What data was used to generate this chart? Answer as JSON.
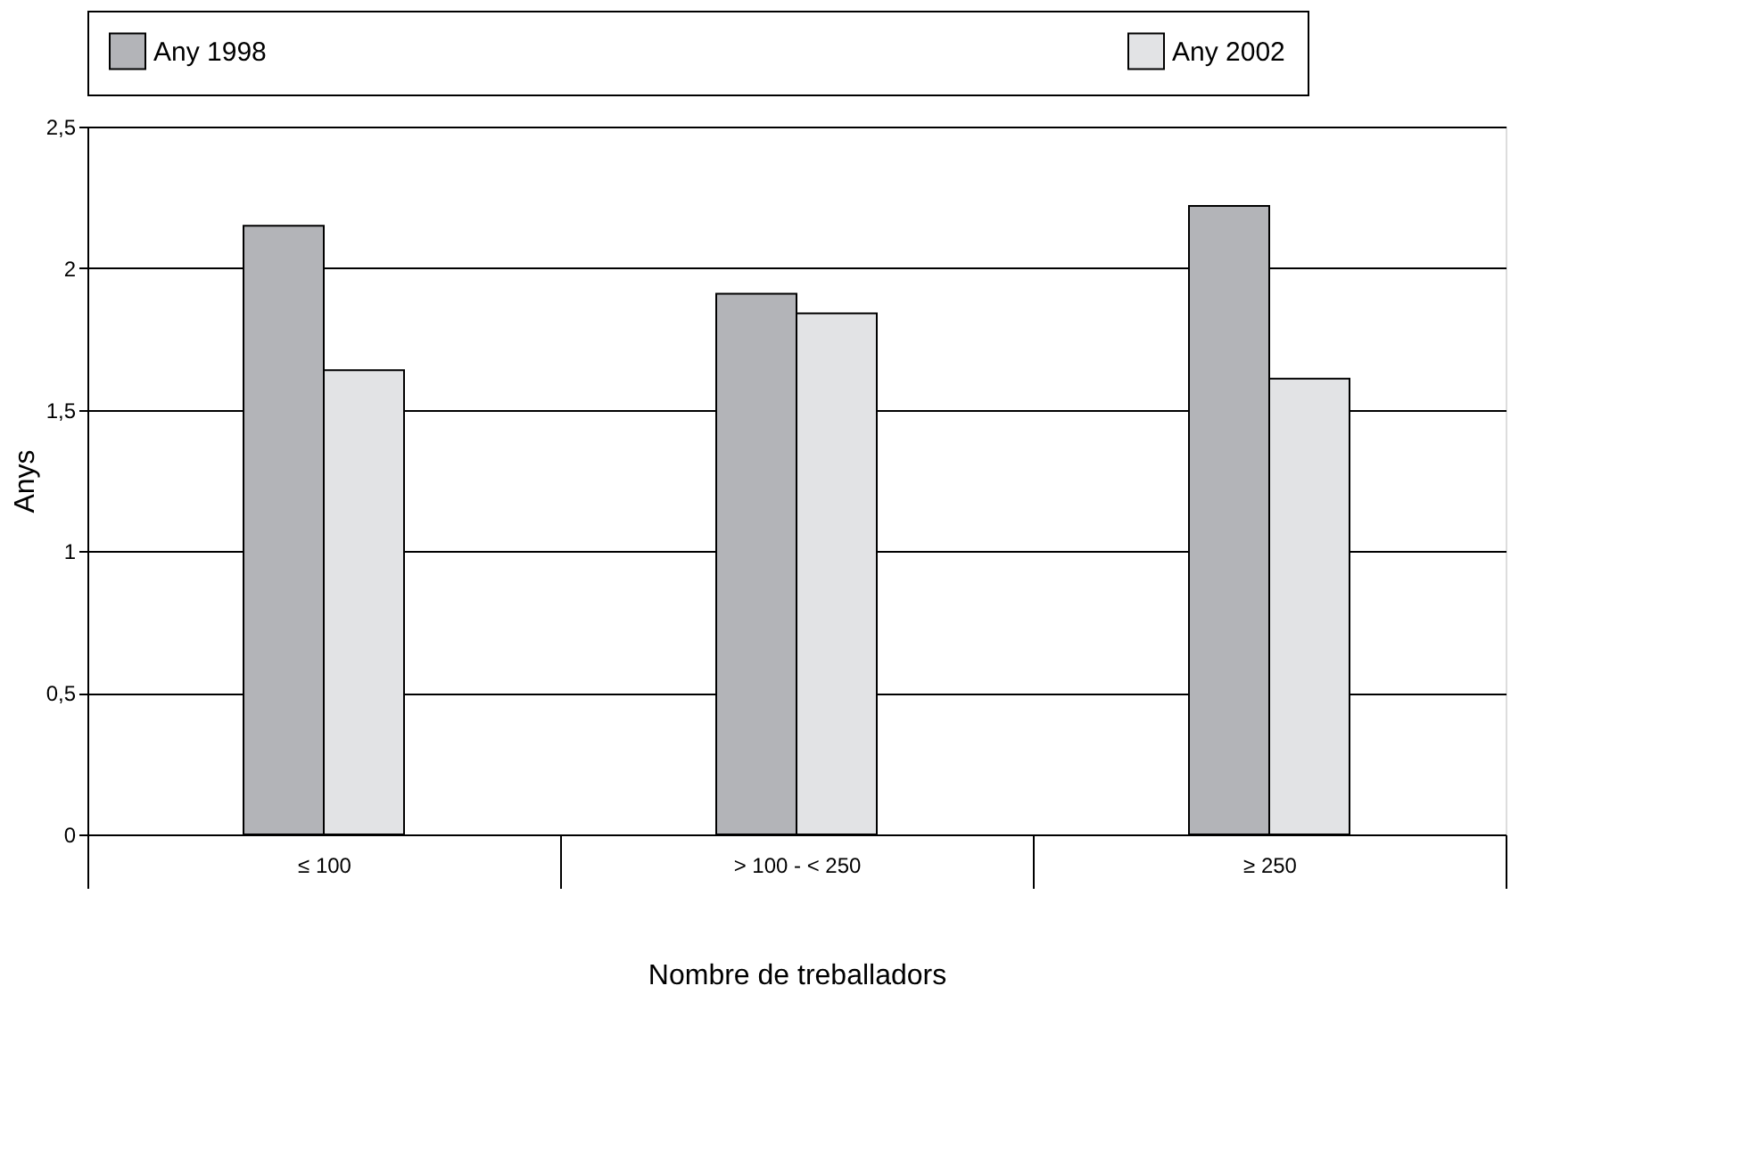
{
  "chart_data": {
    "type": "bar",
    "xlabel": "Nombre de treballadors",
    "ylabel": "Anys",
    "categories": [
      "≤ 100",
      "> 100 - < 250",
      "≥ 250"
    ],
    "series": [
      {
        "name": "Any 1998",
        "color": "#b3b4b8",
        "values": [
          2.15,
          1.91,
          2.22
        ]
      },
      {
        "name": "Any 2002",
        "color": "#e2e3e5",
        "values": [
          1.64,
          1.84,
          1.61
        ]
      }
    ],
    "ylim": [
      0,
      2.5
    ],
    "yticks": [
      0,
      {
        "value": 0.5,
        "label": "0,5"
      },
      1,
      {
        "value": 1.5,
        "label": "1,5"
      },
      2,
      {
        "value": 2.5,
        "label": "2,5"
      }
    ],
    "grid": "y",
    "legend": "top"
  }
}
